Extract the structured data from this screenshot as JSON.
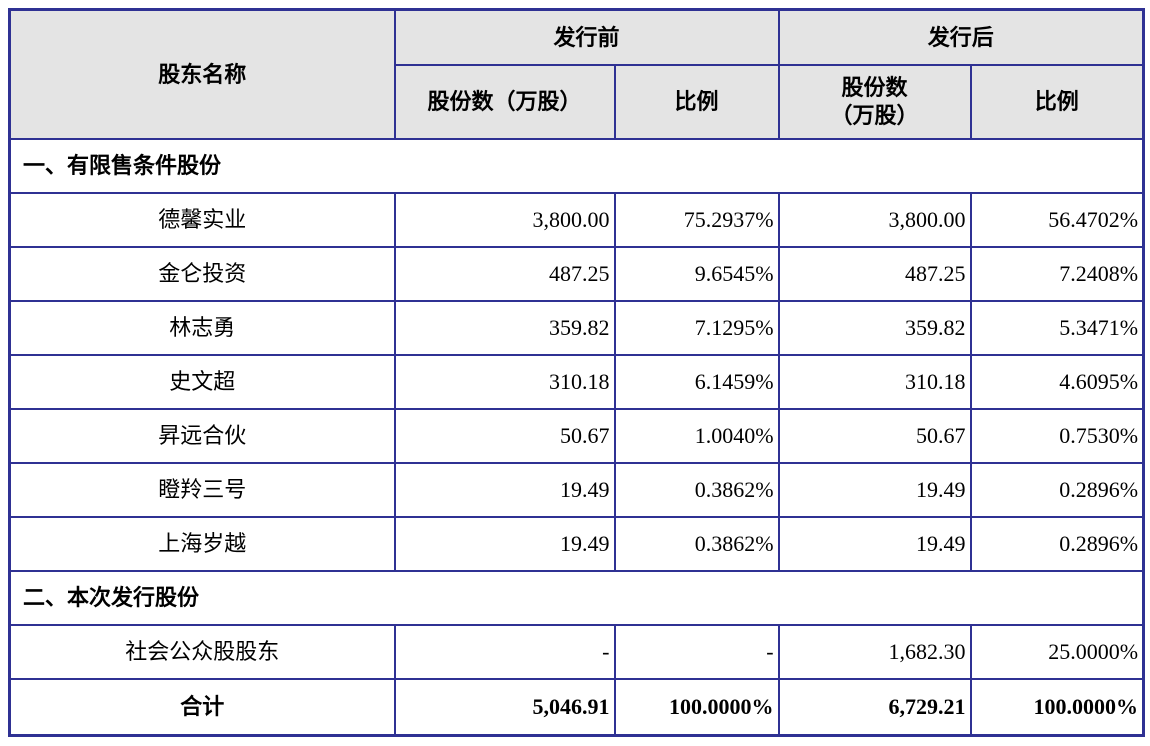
{
  "table": {
    "header": {
      "shareholder_name": "股东名称",
      "pre_issue": "发行前",
      "post_issue": "发行后",
      "pre_shares_label": "股份数（万股）",
      "pre_ratio_label": "比例",
      "post_shares_label_line1": "股份数",
      "post_shares_label_line2": "（万股）",
      "post_ratio_label": "比例"
    },
    "section1_label": "一、有限售条件股份",
    "section2_label": "二、本次发行股份",
    "rows": [
      {
        "name": "德馨实业",
        "pre_shares": "3,800.00",
        "pre_ratio": "75.2937%",
        "post_shares": "3,800.00",
        "post_ratio": "56.4702%"
      },
      {
        "name": "金仑投资",
        "pre_shares": "487.25",
        "pre_ratio": "9.6545%",
        "post_shares": "487.25",
        "post_ratio": "7.2408%"
      },
      {
        "name": "林志勇",
        "pre_shares": "359.82",
        "pre_ratio": "7.1295%",
        "post_shares": "359.82",
        "post_ratio": "5.3471%"
      },
      {
        "name": "史文超",
        "pre_shares": "310.18",
        "pre_ratio": "6.1459%",
        "post_shares": "310.18",
        "post_ratio": "4.6095%"
      },
      {
        "name": "昇远合伙",
        "pre_shares": "50.67",
        "pre_ratio": "1.0040%",
        "post_shares": "50.67",
        "post_ratio": "0.7530%"
      },
      {
        "name": "瞪羚三号",
        "pre_shares": "19.49",
        "pre_ratio": "0.3862%",
        "post_shares": "19.49",
        "post_ratio": "0.2896%"
      },
      {
        "name": "上海岁越",
        "pre_shares": "19.49",
        "pre_ratio": "0.3862%",
        "post_shares": "19.49",
        "post_ratio": "0.2896%"
      }
    ],
    "public_row": {
      "name": "社会公众股股东",
      "pre_shares": "-",
      "pre_ratio": "-",
      "post_shares": "1,682.30",
      "post_ratio": "25.0000%"
    },
    "total_row": {
      "name": "合计",
      "pre_shares": "5,046.91",
      "pre_ratio": "100.0000%",
      "post_shares": "6,729.21",
      "post_ratio": "100.0000%"
    },
    "colors": {
      "border": "#2f3193",
      "header_background": "#e4e4e4"
    }
  }
}
